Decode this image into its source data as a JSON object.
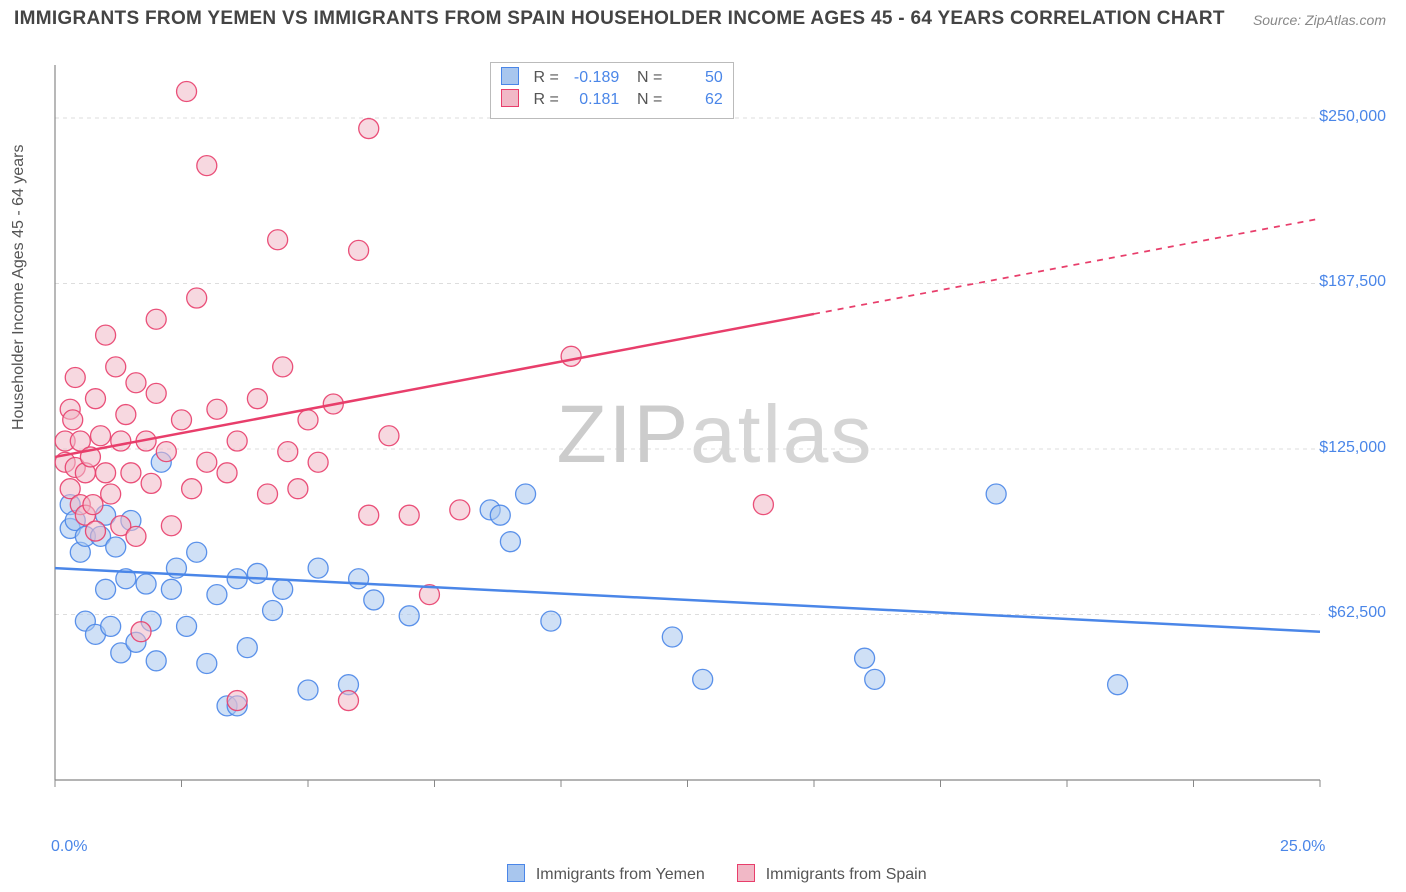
{
  "title": "IMMIGRANTS FROM YEMEN VS IMMIGRANTS FROM SPAIN HOUSEHOLDER INCOME AGES 45 - 64 YEARS CORRELATION CHART",
  "source": "Source: ZipAtlas.com",
  "y_axis_label": "Householder Income Ages 45 - 64 years",
  "watermark_bold": "ZIP",
  "watermark_thin": "atlas",
  "plot": {
    "bg": "#ffffff",
    "axis_color": "#888888",
    "grid_color": "#dddddd",
    "grid_dash": "4,4",
    "xlim": [
      0,
      25
    ],
    "ylim": [
      0,
      270000
    ],
    "x_ticks": [
      0,
      2.5,
      5,
      7.5,
      10,
      12.5,
      15,
      17.5,
      20,
      22.5,
      25
    ],
    "x_tick_labels": [
      {
        "v": 0,
        "t": "0.0%",
        "c": "#4a86e8"
      },
      {
        "v": 25,
        "t": "25.0%",
        "c": "#4a86e8"
      }
    ],
    "y_grid": [
      62500,
      125000,
      187500,
      250000
    ],
    "y_tick_labels": [
      {
        "v": 62500,
        "t": "$62,500"
      },
      {
        "v": 125000,
        "t": "$125,000"
      },
      {
        "v": 187500,
        "t": "$187,500"
      },
      {
        "v": 250000,
        "t": "$250,000"
      }
    ],
    "marker_radius": 10,
    "marker_opacity": 0.55,
    "line_width": 2.5
  },
  "series": [
    {
      "id": "yemen",
      "label": "Immigrants from Yemen",
      "color_fill": "#a8c6ee",
      "color_stroke": "#4a86e8",
      "R": "-0.189",
      "N": "50",
      "trend": {
        "x1": 0,
        "y1": 80000,
        "x2": 25,
        "y2": 56000,
        "solid_to_x": 25
      },
      "points": [
        [
          0.3,
          104000
        ],
        [
          0.3,
          95000
        ],
        [
          0.4,
          98000
        ],
        [
          0.5,
          86000
        ],
        [
          0.6,
          92000
        ],
        [
          0.6,
          60000
        ],
        [
          0.8,
          55000
        ],
        [
          0.9,
          92000
        ],
        [
          1.0,
          100000
        ],
        [
          1.0,
          72000
        ],
        [
          1.1,
          58000
        ],
        [
          1.2,
          88000
        ],
        [
          1.3,
          48000
        ],
        [
          1.4,
          76000
        ],
        [
          1.5,
          98000
        ],
        [
          1.6,
          52000
        ],
        [
          1.8,
          74000
        ],
        [
          1.9,
          60000
        ],
        [
          2.0,
          45000
        ],
        [
          2.1,
          120000
        ],
        [
          2.3,
          72000
        ],
        [
          2.4,
          80000
        ],
        [
          2.6,
          58000
        ],
        [
          2.8,
          86000
        ],
        [
          3.0,
          44000
        ],
        [
          3.2,
          70000
        ],
        [
          3.4,
          28000
        ],
        [
          3.6,
          76000
        ],
        [
          3.6,
          28000
        ],
        [
          3.8,
          50000
        ],
        [
          4.0,
          78000
        ],
        [
          4.3,
          64000
        ],
        [
          4.5,
          72000
        ],
        [
          5.0,
          34000
        ],
        [
          5.2,
          80000
        ],
        [
          5.8,
          36000
        ],
        [
          6.0,
          76000
        ],
        [
          6.3,
          68000
        ],
        [
          7.0,
          62000
        ],
        [
          8.6,
          102000
        ],
        [
          8.8,
          100000
        ],
        [
          9.0,
          90000
        ],
        [
          9.3,
          108000
        ],
        [
          9.8,
          60000
        ],
        [
          12.2,
          54000
        ],
        [
          12.8,
          38000
        ],
        [
          16.0,
          46000
        ],
        [
          16.2,
          38000
        ],
        [
          18.6,
          108000
        ],
        [
          21.0,
          36000
        ]
      ]
    },
    {
      "id": "spain",
      "label": "Immigrants from Spain",
      "color_fill": "#f1b8c6",
      "color_stroke": "#e83e6b",
      "R": "0.181",
      "N": "62",
      "trend": {
        "x1": 0,
        "y1": 122000,
        "x2": 25,
        "y2": 212000,
        "solid_to_x": 15
      },
      "points": [
        [
          0.2,
          128000
        ],
        [
          0.2,
          120000
        ],
        [
          0.3,
          110000
        ],
        [
          0.3,
          140000
        ],
        [
          0.35,
          136000
        ],
        [
          0.4,
          118000
        ],
        [
          0.4,
          152000
        ],
        [
          0.5,
          104000
        ],
        [
          0.5,
          128000
        ],
        [
          0.6,
          116000
        ],
        [
          0.6,
          100000
        ],
        [
          0.7,
          122000
        ],
        [
          0.75,
          104000
        ],
        [
          0.8,
          144000
        ],
        [
          0.8,
          94000
        ],
        [
          0.9,
          130000
        ],
        [
          1.0,
          116000
        ],
        [
          1.0,
          168000
        ],
        [
          1.1,
          108000
        ],
        [
          1.2,
          156000
        ],
        [
          1.3,
          96000
        ],
        [
          1.3,
          128000
        ],
        [
          1.4,
          138000
        ],
        [
          1.5,
          116000
        ],
        [
          1.6,
          150000
        ],
        [
          1.6,
          92000
        ],
        [
          1.7,
          56000
        ],
        [
          1.8,
          128000
        ],
        [
          1.9,
          112000
        ],
        [
          2.0,
          146000
        ],
        [
          2.0,
          174000
        ],
        [
          2.2,
          124000
        ],
        [
          2.3,
          96000
        ],
        [
          2.5,
          136000
        ],
        [
          2.6,
          260000
        ],
        [
          2.7,
          110000
        ],
        [
          2.8,
          182000
        ],
        [
          3.0,
          120000
        ],
        [
          3.0,
          232000
        ],
        [
          3.2,
          140000
        ],
        [
          3.4,
          116000
        ],
        [
          3.6,
          128000
        ],
        [
          3.6,
          30000
        ],
        [
          4.0,
          144000
        ],
        [
          4.2,
          108000
        ],
        [
          4.4,
          204000
        ],
        [
          4.5,
          156000
        ],
        [
          4.6,
          124000
        ],
        [
          4.8,
          110000
        ],
        [
          5.0,
          136000
        ],
        [
          5.2,
          120000
        ],
        [
          5.5,
          142000
        ],
        [
          5.8,
          30000
        ],
        [
          6.0,
          200000
        ],
        [
          6.2,
          100000
        ],
        [
          6.2,
          246000
        ],
        [
          6.6,
          130000
        ],
        [
          7.0,
          100000
        ],
        [
          7.4,
          70000
        ],
        [
          8.0,
          102000
        ],
        [
          10.2,
          160000
        ],
        [
          14.0,
          104000
        ]
      ]
    }
  ],
  "bottom_legend_prefix": ""
}
